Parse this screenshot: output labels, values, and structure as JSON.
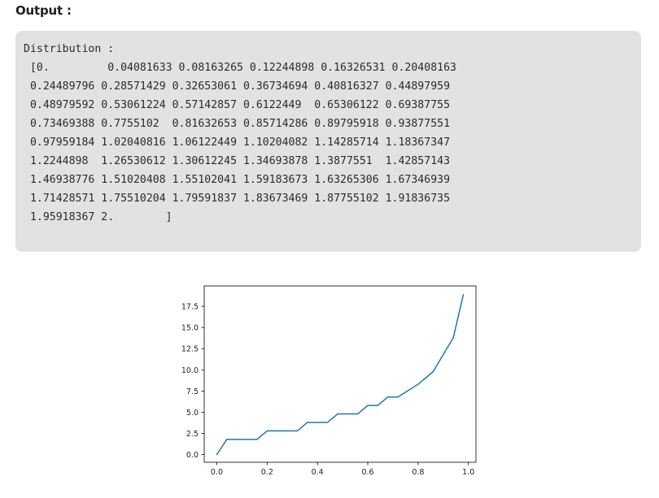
{
  "output_label": "Output :",
  "console": {
    "lines": [
      "Distribution :",
      " [0.         0.04081633 0.08163265 0.12244898 0.16326531 0.20408163",
      " 0.24489796 0.28571429 0.32653061 0.36734694 0.40816327 0.44897959",
      " 0.48979592 0.53061224 0.57142857 0.6122449  0.65306122 0.69387755",
      " 0.73469388 0.7755102  0.81632653 0.85714286 0.89795918 0.93877551",
      " 0.97959184 1.02040816 1.06122449 1.10204082 1.14285714 1.18367347",
      " 1.2244898  1.26530612 1.30612245 1.34693878 1.3877551  1.42857143",
      " 1.46938776 1.51020408 1.55102041 1.59183673 1.63265306 1.67346939",
      " 1.71428571 1.75510204 1.79591837 1.83673469 1.87755102 1.91836735",
      " 1.95918367 2.        ]"
    ]
  },
  "chart_data": {
    "type": "line",
    "title": "",
    "xlabel": "",
    "ylabel": "",
    "xlim": [
      -0.05,
      1.03
    ],
    "ylim": [
      -0.9,
      19.9
    ],
    "x_ticks": [
      0.0,
      0.2,
      0.4,
      0.6,
      0.8,
      1.0
    ],
    "x_tick_labels": [
      "0.0",
      "0.2",
      "0.4",
      "0.6",
      "0.8",
      "1.0"
    ],
    "y_ticks": [
      0.0,
      2.5,
      5.0,
      7.5,
      10.0,
      12.5,
      15.0,
      17.5
    ],
    "y_tick_labels": [
      "0.0",
      "2.5",
      "5.0",
      "7.5",
      "10.0",
      "12.5",
      "15.0",
      "17.5"
    ],
    "grid": false,
    "line_color": "#1f77b4",
    "series": [
      {
        "name": "distribution",
        "x": [
          0.0,
          0.04,
          0.16,
          0.2,
          0.32,
          0.36,
          0.44,
          0.48,
          0.56,
          0.6,
          0.64,
          0.68,
          0.72,
          0.8,
          0.86,
          0.94,
          0.98
        ],
        "y": [
          0.0,
          1.8,
          1.8,
          2.8,
          2.8,
          3.8,
          3.8,
          4.8,
          4.8,
          5.8,
          5.8,
          6.8,
          6.8,
          8.3,
          9.8,
          13.8,
          18.9
        ]
      }
    ]
  }
}
